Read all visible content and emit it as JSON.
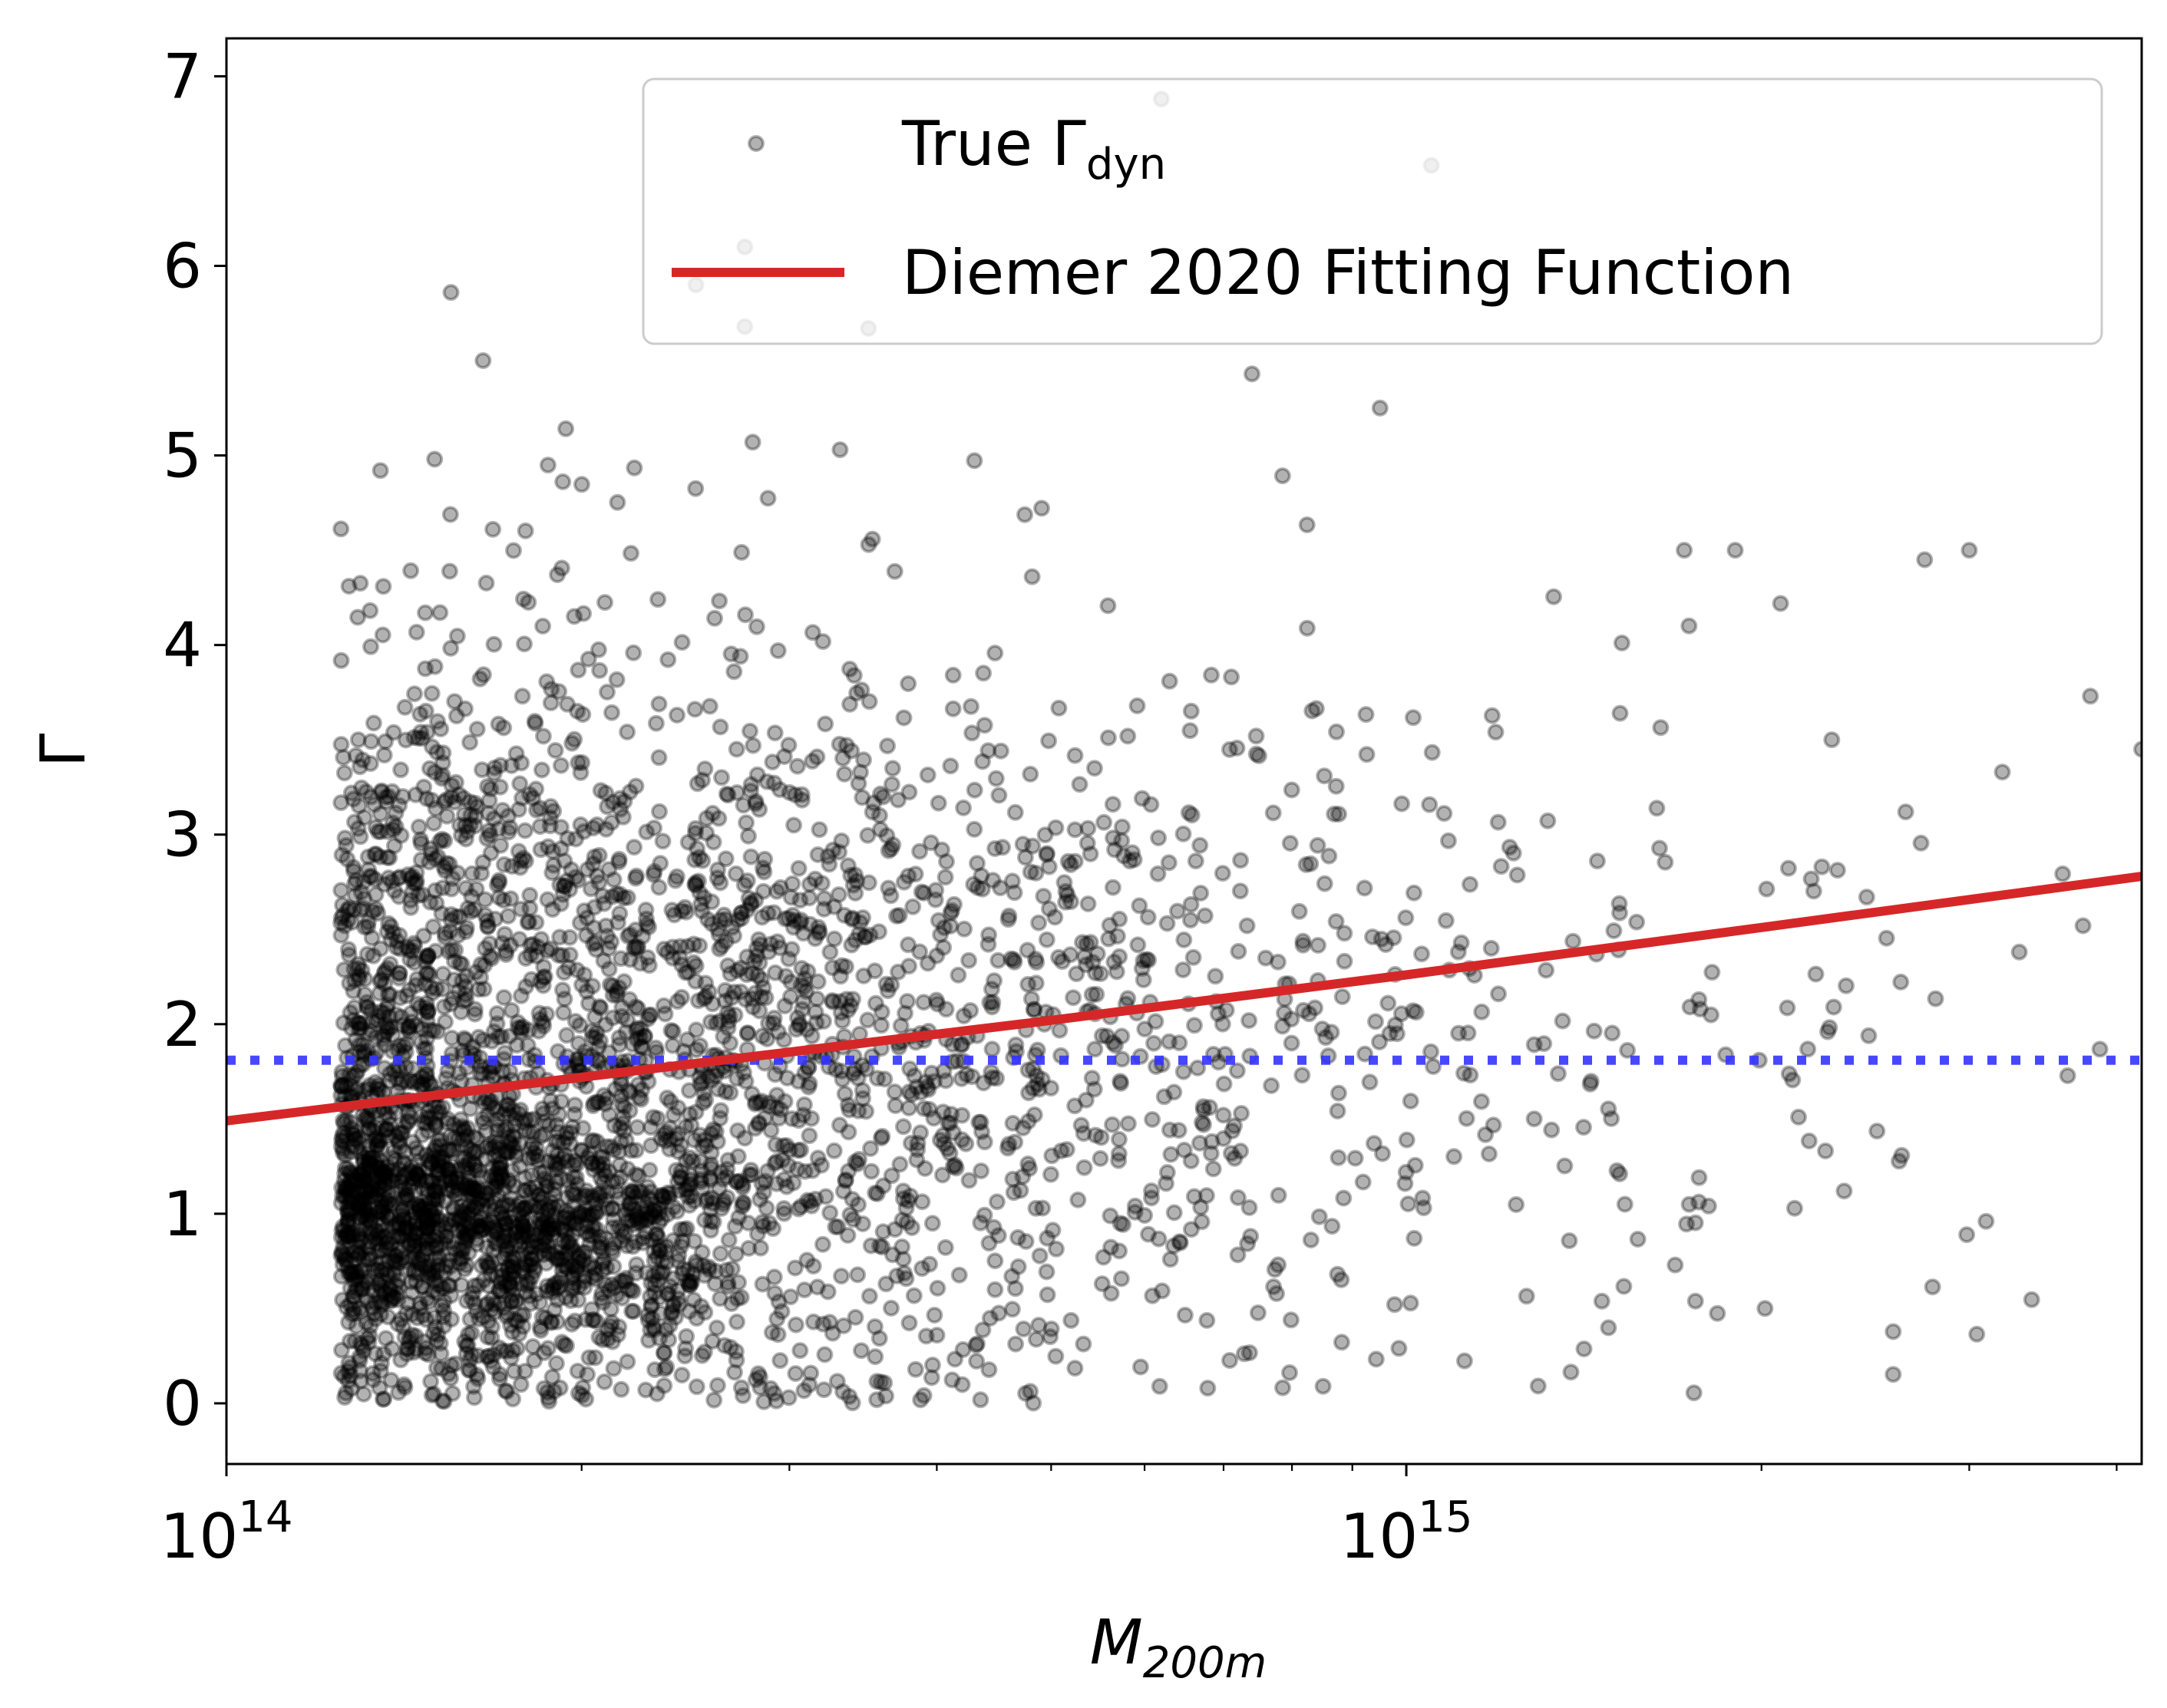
{
  "chart_data": {
    "type": "scatter",
    "title": "",
    "xlabel": {
      "base": "M",
      "sub": "200m"
    },
    "ylabel": "Γ",
    "x_scale": "log",
    "xlim": [
      100000000000000.0,
      4200000000000000.0
    ],
    "ylim": [
      -0.32,
      7.2
    ],
    "x_ticks": [
      {
        "value": 100000000000000.0,
        "base": "10",
        "exp": "14"
      },
      {
        "value": 1000000000000000.0,
        "base": "10",
        "exp": "15"
      }
    ],
    "y_ticks": [
      0,
      1,
      2,
      3,
      4,
      5,
      6,
      7
    ],
    "grid": false,
    "legend_position": "top-right",
    "series": [
      {
        "name": "True Γ",
        "name_sub": "dyn",
        "kind": "scatter",
        "color": "#000000",
        "alpha": 0.3,
        "point_count": 4000,
        "outliers": [
          {
            "x": 127000000000000.0,
            "y": 4.31
          },
          {
            "x": 155000000000000.0,
            "y": 5.86
          },
          {
            "x": 165000000000000.0,
            "y": 5.5
          },
          {
            "x": 250000000000000.0,
            "y": 5.9
          },
          {
            "x": 275000000000000.0,
            "y": 6.1
          },
          {
            "x": 275000000000000.0,
            "y": 5.68
          },
          {
            "x": 350000000000000.0,
            "y": 5.67
          },
          {
            "x": 620000000000000.0,
            "y": 6.88
          },
          {
            "x": 1050000000000000.0,
            "y": 6.53
          },
          {
            "x": 950000000000000.0,
            "y": 5.25
          },
          {
            "x": 740000000000000.0,
            "y": 5.43
          },
          {
            "x": 4200000000000000.0,
            "y": 3.45
          },
          {
            "x": 3800000000000000.0,
            "y": 3.73
          },
          {
            "x": 3000000000000000.0,
            "y": 4.5
          },
          {
            "x": 2750000000000000.0,
            "y": 4.45
          },
          {
            "x": 1900000000000000.0,
            "y": 4.5
          },
          {
            "x": 1720000000000000.0,
            "y": 4.5
          },
          {
            "x": 3100000000000000.0,
            "y": 0.96
          },
          {
            "x": 850000000000000.0,
            "y": 0.09
          },
          {
            "x": 1690000000000000.0,
            "y": 0.73
          },
          {
            "x": 2350000000000000.0,
            "y": 1.12
          },
          {
            "x": 1770000000000000.0,
            "y": 2.13
          },
          {
            "x": 2150000000000000.0,
            "y": 1.51
          },
          {
            "x": 3200000000000000.0,
            "y": 3.33
          },
          {
            "x": 2650000000000000.0,
            "y": 3.12
          },
          {
            "x": 2250000000000000.0,
            "y": 2.83
          }
        ]
      },
      {
        "name": "Diemer 2020 Fitting Function",
        "kind": "line",
        "color": "#d62728",
        "x": [
          100000000000000.0,
          200000000000000.0,
          500000000000000.0,
          1000000000000000.0,
          2000000000000000.0,
          4200000000000000.0
        ],
        "y": [
          1.49,
          1.72,
          2.02,
          2.26,
          2.51,
          2.78
        ]
      },
      {
        "kind": "hline",
        "style": "dotted",
        "color": "#3333ff",
        "y": 1.81
      }
    ]
  }
}
